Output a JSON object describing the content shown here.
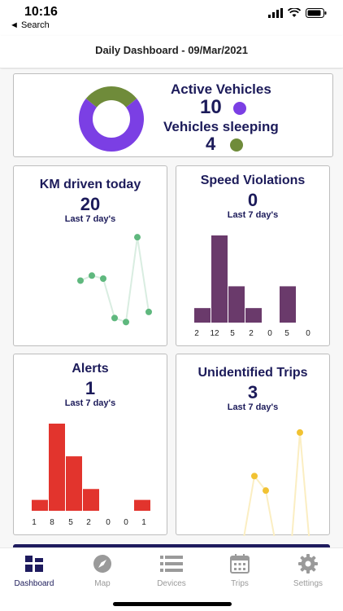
{
  "status_bar": {
    "time": "10:16",
    "back_label": "◄ Search"
  },
  "header": {
    "title": "Daily Dashboard - 09/Mar/2021"
  },
  "summary": {
    "active_label": "Active Vehicles",
    "active_value": "10",
    "sleeping_label": "Vehicles sleeping",
    "sleeping_value": "4",
    "colors": {
      "active": "#7b3fe4",
      "sleeping": "#6f8b3a"
    }
  },
  "cards": {
    "km": {
      "title": "KM driven today",
      "value": "20",
      "subtitle": "Last 7 day's"
    },
    "speed": {
      "title": "Speed Violations",
      "value": "0",
      "subtitle": "Last 7 day's",
      "ticks": [
        "2",
        "12",
        "5",
        "2",
        "0",
        "5",
        "0"
      ]
    },
    "alerts": {
      "title": "Alerts",
      "value": "1",
      "subtitle": "Last 7 day's",
      "ticks": [
        "1",
        "8",
        "5",
        "2",
        "0",
        "0",
        "1"
      ]
    },
    "trips": {
      "title": "Unidentified Trips",
      "value": "3",
      "subtitle": "Last 7 day's"
    }
  },
  "chart_data": [
    {
      "type": "pie",
      "labels": [
        "Active Vehicles",
        "Vehicles sleeping"
      ],
      "values": [
        10,
        4
      ],
      "colors": [
        "#7b3fe4",
        "#6f8b3a"
      ]
    },
    {
      "type": "line",
      "title": "KM driven today",
      "x": [
        1,
        2,
        3,
        4,
        5,
        6,
        7
      ],
      "values": [
        0.48,
        0.53,
        0.5,
        0.11,
        0.07,
        0.91,
        0.17
      ],
      "ylim": [
        0,
        1
      ],
      "colors": {
        "line": "#d9ede1",
        "point": "#5fb87e"
      }
    },
    {
      "type": "bar",
      "title": "Speed Violations",
      "categories": [
        "1",
        "2",
        "3",
        "4",
        "5",
        "6",
        "7"
      ],
      "values": [
        2,
        12,
        5,
        2,
        0,
        5,
        0
      ],
      "ylim": [
        0,
        12
      ],
      "colors": {
        "bar": "#6a3a6b"
      }
    },
    {
      "type": "bar",
      "title": "Alerts",
      "categories": [
        "1",
        "2",
        "3",
        "4",
        "5",
        "6",
        "7"
      ],
      "values": [
        1,
        8,
        5,
        2,
        0,
        0,
        1
      ],
      "ylim": [
        0,
        8
      ],
      "colors": {
        "bar": "#e2342d"
      }
    },
    {
      "type": "line",
      "title": "Unidentified Trips",
      "x": [
        1,
        2,
        3,
        4,
        5,
        6,
        7
      ],
      "values": [
        0.27,
        0.68,
        0.59,
        0.21,
        0.02,
        0.95,
        0.14
      ],
      "ylim": [
        0,
        1
      ],
      "colors": {
        "line": "#fbeec2",
        "point": "#f1c232"
      }
    }
  ],
  "tabs": [
    {
      "label": "Dashboard",
      "icon": "dashboard-grid-icon",
      "active": true
    },
    {
      "label": "Map",
      "icon": "compass-icon",
      "active": false
    },
    {
      "label": "Devices",
      "icon": "list-icon",
      "active": false
    },
    {
      "label": "Trips",
      "icon": "calendar-icon",
      "active": false
    },
    {
      "label": "Settings",
      "icon": "gear-icon",
      "active": false
    }
  ]
}
